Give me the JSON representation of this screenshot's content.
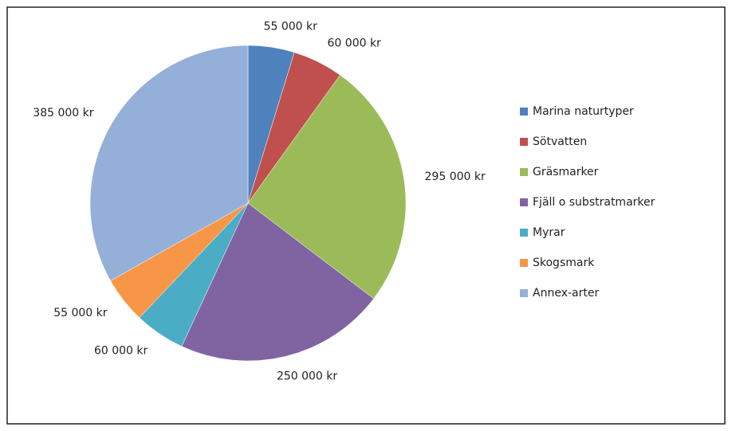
{
  "chart_data": {
    "type": "pie",
    "categories": [
      "Marina naturtyper",
      "Sötvatten",
      "Gräsmarker",
      "Fjäll o substratmarker",
      "Myrar",
      "Skogsmark",
      "Annex-arter"
    ],
    "values": [
      55000,
      60000,
      295000,
      250000,
      60000,
      55000,
      385000
    ],
    "value_labels": [
      "55 000 kr",
      "60 000 kr",
      "295 000 kr",
      "250 000 kr",
      "60 000 kr",
      "55 000 kr",
      "385 000 kr"
    ],
    "colors": [
      "#4f81bd",
      "#c0504d",
      "#9bbb59",
      "#8064a2",
      "#4bacc6",
      "#f79646",
      "#95b0d8"
    ],
    "legend": "right"
  }
}
